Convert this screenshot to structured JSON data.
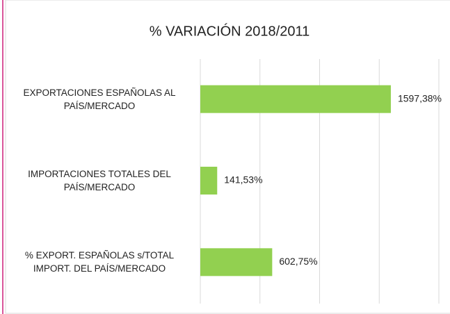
{
  "chart_data": {
    "type": "hbar",
    "title": "% VARIACIÓN 2018/2011",
    "categories": [
      "EXPORTACIONES ESPAÑOLAS AL\nPAÍS/MERCADO",
      "IMPORTACIONES TOTALES DEL\nPAÍS/MERCADO",
      "% EXPORT. ESPAÑOLAS s/TOTAL\nIMPORT. DEL PAÍS/MERCADO"
    ],
    "values": [
      1597.38,
      141.53,
      602.75
    ],
    "value_labels": [
      "1597,38%",
      "141,53%",
      "602,75%"
    ],
    "color": "#92d050",
    "xlim": [
      0,
      2000
    ],
    "xticks": [
      0,
      500,
      1000,
      1500,
      2000
    ],
    "grid": true
  }
}
